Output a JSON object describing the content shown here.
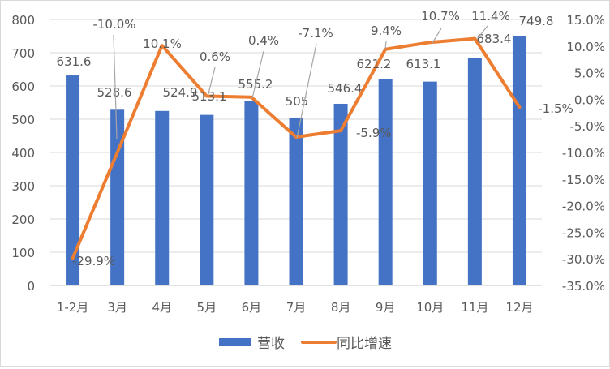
{
  "chart_data": {
    "type": "bar+line",
    "title": "",
    "categories": [
      "1-2月",
      "3月",
      "4月",
      "5月",
      "6月",
      "7月",
      "8月",
      "9月",
      "10月",
      "11月",
      "12月"
    ],
    "series": [
      {
        "name": "营收",
        "type": "bar",
        "axis": "left",
        "color": "#4472C4",
        "values": [
          631.6,
          528.6,
          524.9,
          513.1,
          555.2,
          505,
          546.4,
          621.2,
          613.1,
          683.4,
          749.8
        ],
        "labels": [
          "631.6",
          "528.6",
          "524.9",
          "513.1",
          "555.2",
          "505",
          "546.4",
          "621.2",
          "613.1",
          "683.4",
          "749.8"
        ]
      },
      {
        "name": "同比增速",
        "type": "line",
        "axis": "right",
        "color": "#ED7D31",
        "values": [
          -29.9,
          -10.0,
          10.1,
          0.6,
          0.4,
          -7.1,
          -5.9,
          9.4,
          10.7,
          11.4,
          -1.5
        ],
        "labels": [
          "-29.9%",
          "-10.0%",
          "10.1%",
          "0.6%",
          "0.4%",
          "-7.1%",
          "-5.9%",
          "9.4%",
          "10.7%",
          "11.4%",
          "-1.5%"
        ]
      }
    ],
    "left_axis": {
      "ylim": [
        0,
        800
      ],
      "ticks": [
        "0",
        "100",
        "200",
        "300",
        "400",
        "500",
        "600",
        "700",
        "800"
      ]
    },
    "right_axis": {
      "ylim": [
        -35,
        15
      ],
      "ticks": [
        "-35.0%",
        "-30.0%",
        "-25.0%",
        "-20.0%",
        "-15.0%",
        "-10.0%",
        "-5.0%",
        "0.0%",
        "5.0%",
        "10.0%",
        "15.0%"
      ]
    },
    "grid": true,
    "legend_position": "bottom",
    "xlabel": "",
    "ylabel": ""
  },
  "legend": {
    "bar_label": "营收",
    "line_label": "同比增速"
  }
}
